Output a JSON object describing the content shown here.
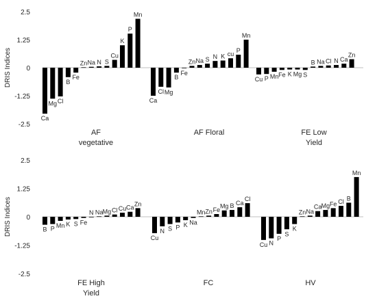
{
  "chart_data": [
    {
      "type": "bar",
      "ylabel": "DRIS Indices",
      "ylim": [
        -2.5,
        2.5
      ],
      "yticks": [
        "2.5",
        "1.25",
        "0",
        "-1.25",
        "-2.5"
      ],
      "ytick_values": [
        2.5,
        1.25,
        0,
        -1.25,
        -2.5
      ],
      "bar_color": "#000000",
      "groups": [
        {
          "label_lines": [
            "AF",
            "vegetative"
          ],
          "categories": [
            "Ca",
            "Mg",
            "Cl",
            "B",
            "Fe",
            "Zn",
            "Na",
            "N",
            "S",
            "Cu",
            "K",
            "P",
            "Mn"
          ],
          "values": [
            -2.05,
            -1.38,
            -1.28,
            -0.42,
            -0.22,
            0.02,
            0.04,
            0.06,
            0.08,
            0.35,
            1.0,
            1.52,
            2.18
          ]
        },
        {
          "label_lines": [
            "AF Floral"
          ],
          "categories": [
            "Ca",
            "Cl",
            "Mg",
            "B",
            "Fe",
            "Zn",
            "Na",
            "S",
            "N",
            "K",
            "cu",
            "P",
            "Mn"
          ],
          "values": [
            -1.25,
            -0.85,
            -0.88,
            -0.22,
            -0.02,
            0.08,
            0.12,
            0.18,
            0.3,
            0.32,
            0.42,
            0.58,
            1.25
          ]
        },
        {
          "label_lines": [
            "FE Low",
            "Yield"
          ],
          "categories": [
            "Cu",
            "P",
            "Mn",
            "Fe",
            "K",
            "Mg",
            "S",
            "B",
            "Na",
            "Cl",
            "N",
            "Ca",
            "Zn"
          ],
          "values": [
            -0.3,
            -0.28,
            -0.18,
            -0.1,
            -0.08,
            -0.08,
            -0.1,
            0.05,
            0.08,
            0.1,
            0.12,
            0.18,
            0.38
          ]
        }
      ]
    },
    {
      "type": "bar",
      "ylabel": "DRIS Indices",
      "ylim": [
        -2.5,
        2.5
      ],
      "yticks": [
        "2.5",
        "1.25",
        "0",
        "-1.25",
        "-2.5"
      ],
      "ytick_values": [
        2.5,
        1.25,
        0,
        -1.25,
        -2.5
      ],
      "bar_color": "#000000",
      "groups": [
        {
          "label_lines": [
            "FE High",
            "Yield"
          ],
          "categories": [
            "B",
            "P",
            "Mn",
            "K",
            "S",
            "Fe",
            "N",
            "Na",
            "Mg",
            "Cl",
            "Cu",
            "Ca",
            "Zn"
          ],
          "values": [
            -0.35,
            -0.32,
            -0.18,
            -0.12,
            -0.1,
            -0.05,
            0.0,
            0.02,
            0.05,
            0.1,
            0.18,
            0.22,
            0.38
          ]
        },
        {
          "label_lines": [
            "FC"
          ],
          "categories": [
            "Cu",
            "N",
            "S",
            "P",
            "K",
            "Na",
            "Mn",
            "Zn",
            "Fe",
            "Mg",
            "B",
            "Ca",
            "Cl"
          ],
          "values": [
            -0.72,
            -0.42,
            -0.32,
            -0.25,
            -0.15,
            -0.05,
            0.02,
            0.05,
            0.12,
            0.28,
            0.3,
            0.42,
            0.6
          ]
        },
        {
          "label_lines": [
            "HV"
          ],
          "categories": [
            "Cu",
            "N",
            "P",
            "S",
            "K",
            "Zn",
            "Na",
            "Ca",
            "Mg",
            "Fe",
            "Cl",
            "B",
            "Mn"
          ],
          "values": [
            -1.02,
            -0.95,
            -0.75,
            -0.55,
            -0.32,
            0.02,
            0.05,
            0.25,
            0.3,
            0.38,
            0.48,
            0.62,
            1.75
          ]
        }
      ]
    }
  ]
}
